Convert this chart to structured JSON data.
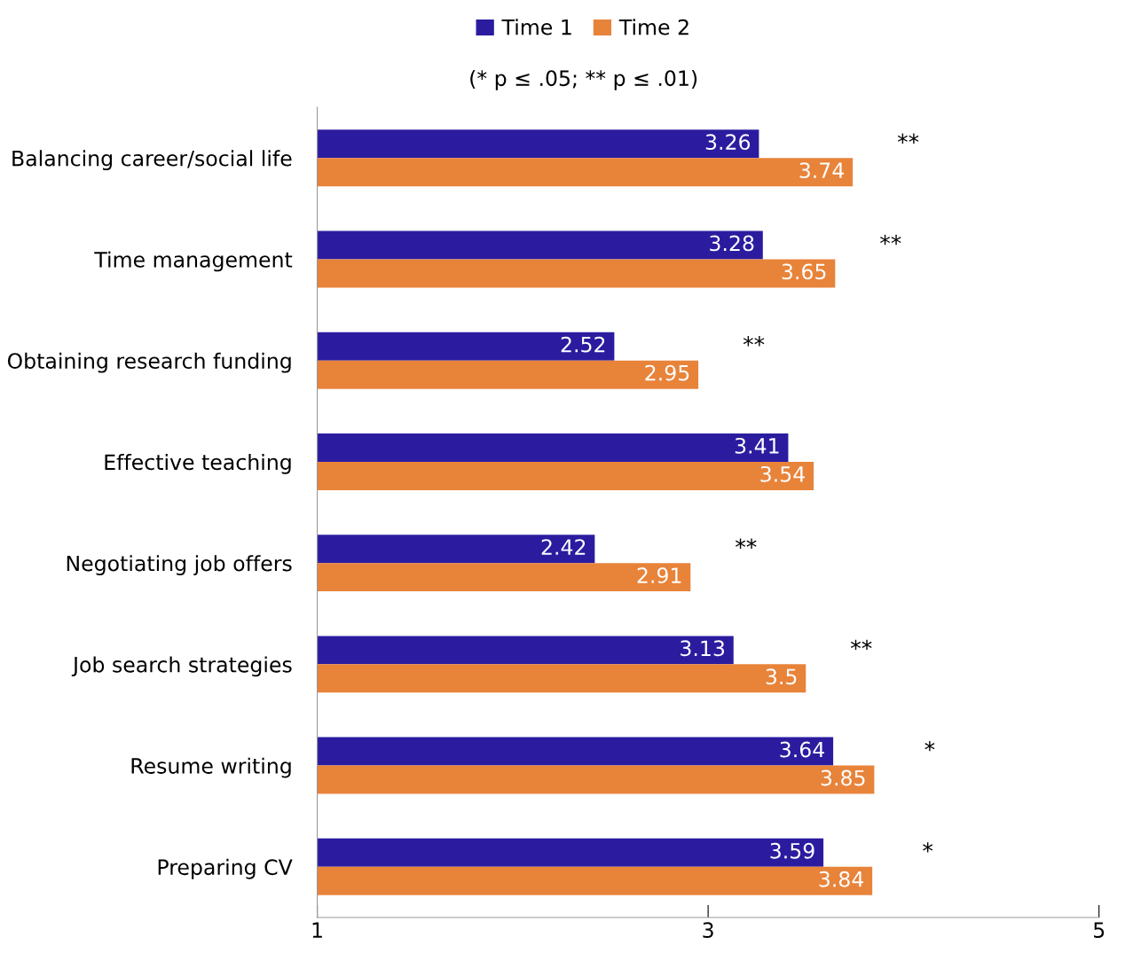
{
  "chart_data": {
    "type": "bar",
    "orientation": "horizontal",
    "subtitle": "(* p ≤ .05; ** p ≤ .01)",
    "categories": [
      "Balancing career/social life",
      "Time management",
      "Obtaining research funding",
      "Effective teaching",
      "Negotiating job offers",
      "Job search strategies",
      "Resume writing",
      "Preparing CV"
    ],
    "series": [
      {
        "name": "Time 1",
        "color": "#2b1c9f",
        "values": [
          3.26,
          3.28,
          2.52,
          3.41,
          2.42,
          3.13,
          3.64,
          3.59
        ]
      },
      {
        "name": "Time 2",
        "color": "#e8833a",
        "values": [
          3.74,
          3.65,
          2.95,
          3.54,
          2.91,
          3.5,
          3.85,
          3.84
        ]
      }
    ],
    "xlim": [
      1,
      5
    ],
    "xticks": [
      1,
      3,
      5
    ],
    "data_labels": true,
    "legend": "top",
    "grid": false,
    "annotations": [
      {
        "text": "**",
        "x": 3.74,
        "y": "Balancing career/social life"
      },
      {
        "text": "**",
        "x": 3.65,
        "y": "Time management"
      },
      {
        "text": "**",
        "x": 2.95,
        "y": "Obtaining research funding"
      },
      {
        "text": "**",
        "x": 2.91,
        "y": "Negotiating job offers"
      },
      {
        "text": "**",
        "x": 3.5,
        "y": "Job search strategies"
      },
      {
        "text": "*",
        "x": 3.85,
        "y": "Resume writing"
      },
      {
        "text": "*",
        "x": 3.84,
        "y": "Preparing CV"
      }
    ]
  }
}
